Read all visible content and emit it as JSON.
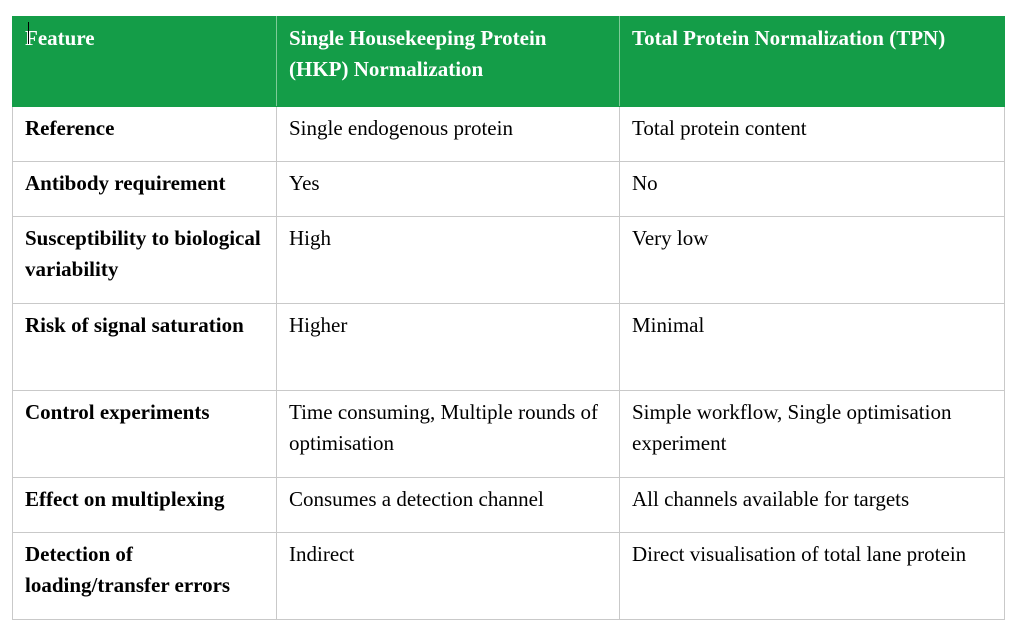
{
  "table": {
    "headers": [
      "Feature",
      "Single Housekeeping Protein (HKP) Normalization",
      "Total Protein Normalization (TPN)"
    ],
    "rows": [
      [
        "Reference",
        "Single endogenous protein",
        "Total protein content"
      ],
      [
        "Antibody requirement",
        "Yes",
        "No"
      ],
      [
        "Susceptibility to biological variability",
        "High",
        "Very low"
      ],
      [
        "Risk of signal saturation",
        "Higher",
        "Minimal"
      ],
      [
        "Control experiments",
        "Time consuming, Multiple rounds of optimisation",
        "Simple workflow, Single optimisation experiment"
      ],
      [
        "Effect on multiplexing",
        "Consumes a detection channel",
        "All channels available for targets"
      ],
      [
        "Detection of loading/transfer errors",
        "Indirect",
        "Direct visualisation of total lane protein"
      ]
    ]
  },
  "colors": {
    "header_bg": "#149d48",
    "header_text": "#ffffff",
    "border": "#c9c9c9"
  }
}
